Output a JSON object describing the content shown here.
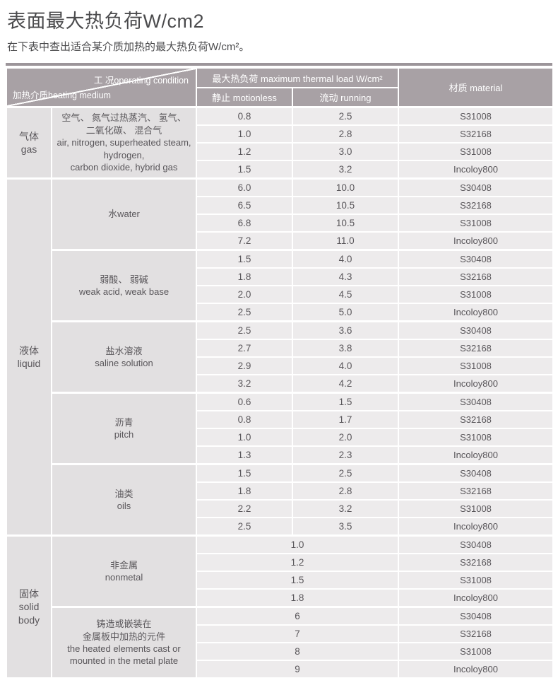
{
  "page": {
    "title": "表面最大热负荷W/cm2",
    "subtitle": "在下表中查出适合某介质加热的最大热负荷W/cm²。"
  },
  "colors": {
    "header_bg": "#a8a1a5",
    "top_bar": "#9c959a",
    "label_cell_bg": "#e2e0e1",
    "data_cell_bg": "#edebec",
    "header_text": "#ffffff",
    "body_text": "#59565a"
  },
  "table": {
    "header": {
      "corner_top": "工 况operating condition",
      "corner_bottom": "加热介质heating medium",
      "load_label": "最大热负荷 maximum thermal load W/cm²",
      "motionless_label": "静止 motionless",
      "running_label": "流动 running",
      "material_label": "材质 material"
    },
    "categories": [
      {
        "label_lines": [
          "气体",
          "gas"
        ],
        "groups": [
          {
            "medium_lines": [
              "空气、 氮气过热蒸汽、 氢气、",
              "二氧化碳、 混合气",
              "air, nitrogen, superheated steam,",
              "hydrogen,",
              "carbon dioxide, hybrid gas"
            ],
            "rows": [
              {
                "motionless": "0.8",
                "running": "2.5",
                "material": "S31008"
              },
              {
                "motionless": "1.0",
                "running": "2.8",
                "material": "S32168"
              },
              {
                "motionless": "1.2",
                "running": "3.0",
                "material": "S31008"
              },
              {
                "motionless": "1.5",
                "running": "3.2",
                "material": "Incoloy800"
              }
            ]
          }
        ]
      },
      {
        "label_lines": [
          "液体",
          "liquid"
        ],
        "groups": [
          {
            "medium_lines": [
              "水water"
            ],
            "rows": [
              {
                "motionless": "6.0",
                "running": "10.0",
                "material": "S30408"
              },
              {
                "motionless": "6.5",
                "running": "10.5",
                "material": "S32168"
              },
              {
                "motionless": "6.8",
                "running": "10.5",
                "material": "S31008"
              },
              {
                "motionless": "7.2",
                "running": "11.0",
                "material": "Incoloy800"
              }
            ]
          },
          {
            "medium_lines": [
              "弱酸、 弱碱",
              "weak acid, weak base"
            ],
            "rows": [
              {
                "motionless": "1.5",
                "running": "4.0",
                "material": "S30408"
              },
              {
                "motionless": "1.8",
                "running": "4.3",
                "material": "S32168"
              },
              {
                "motionless": "2.0",
                "running": "4.5",
                "material": "S31008"
              },
              {
                "motionless": "2.5",
                "running": "5.0",
                "material": "Incoloy800"
              }
            ]
          },
          {
            "medium_lines": [
              "盐水溶液",
              "saline solution"
            ],
            "rows": [
              {
                "motionless": "2.5",
                "running": "3.6",
                "material": "S30408"
              },
              {
                "motionless": "2.7",
                "running": "3.8",
                "material": "S32168"
              },
              {
                "motionless": "2.9",
                "running": "4.0",
                "material": "S31008"
              },
              {
                "motionless": "3.2",
                "running": "4.2",
                "material": "Incoloy800"
              }
            ]
          },
          {
            "medium_lines": [
              "沥青",
              "pitch"
            ],
            "rows": [
              {
                "motionless": "0.6",
                "running": "1.5",
                "material": "S30408"
              },
              {
                "motionless": "0.8",
                "running": "1.7",
                "material": "S32168"
              },
              {
                "motionless": "1.0",
                "running": "2.0",
                "material": "S31008"
              },
              {
                "motionless": "1.3",
                "running": "2.3",
                "material": "Incoloy800"
              }
            ]
          },
          {
            "medium_lines": [
              "油类",
              "oils"
            ],
            "rows": [
              {
                "motionless": "1.5",
                "running": "2.5",
                "material": "S30408"
              },
              {
                "motionless": "1.8",
                "running": "2.8",
                "material": "S32168"
              },
              {
                "motionless": "2.2",
                "running": "3.2",
                "material": "S31008"
              },
              {
                "motionless": "2.5",
                "running": "3.5",
                "material": "Incoloy800"
              }
            ]
          }
        ]
      },
      {
        "label_lines": [
          "固体",
          "solid",
          "body"
        ],
        "groups": [
          {
            "medium_lines": [
              "非金属",
              "nonmetal"
            ],
            "rows": [
              {
                "combined": "1.0",
                "material": "S30408"
              },
              {
                "combined": "1.2",
                "material": "S32168"
              },
              {
                "combined": "1.5",
                "material": "S31008"
              },
              {
                "combined": "1.8",
                "material": "Incoloy800"
              }
            ]
          },
          {
            "medium_lines": [
              "铸造或嵌装在",
              "金属板中加热的元件",
              "the heated elements cast or",
              "mounted in the metal plate"
            ],
            "rows": [
              {
                "combined": "6",
                "material": "S30408"
              },
              {
                "combined": "7",
                "material": "S32168"
              },
              {
                "combined": "8",
                "material": "S31008"
              },
              {
                "combined": "9",
                "material": "Incoloy800"
              }
            ]
          }
        ]
      }
    ]
  }
}
